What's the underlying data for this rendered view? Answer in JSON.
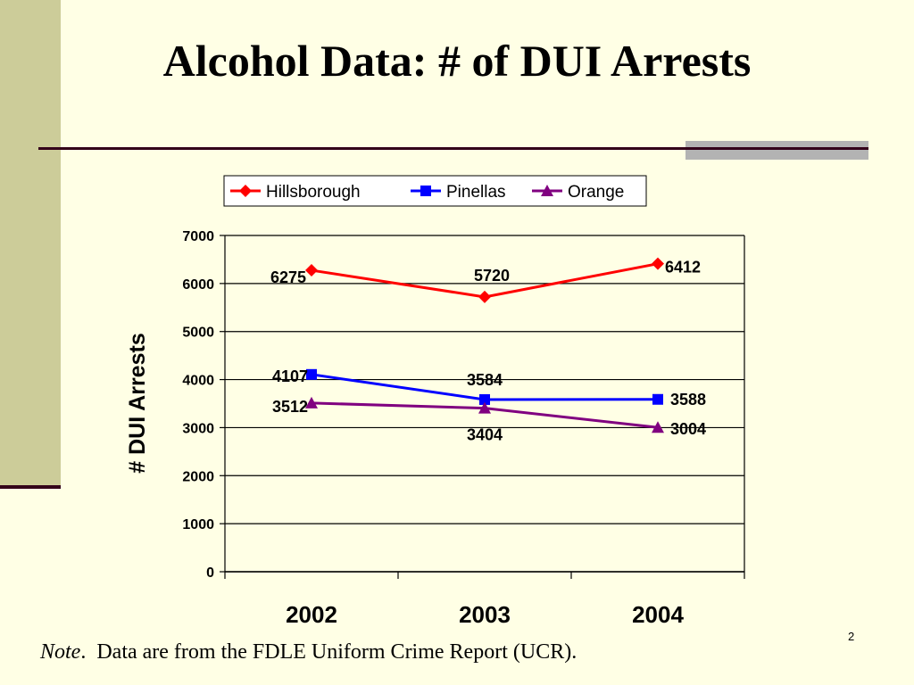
{
  "slide": {
    "title": "Alcohol Data: # of DUI Arrests",
    "note_prefix": "Note",
    "note_text": ".  Data are from the FDLE Uniform Crime Report (UCR).",
    "page_number": "2"
  },
  "colors": {
    "background": "#ffffe5",
    "sidebar": "#cccc99",
    "rule": "#33001a",
    "hillsborough": "#ff0000",
    "pinellas": "#0000ff",
    "orange": "#800080"
  },
  "chart_data": {
    "type": "line",
    "title": "",
    "xlabel": "",
    "ylabel": "# DUI Arrests",
    "categories": [
      "2002",
      "2003",
      "2004"
    ],
    "ylim": [
      0,
      7000
    ],
    "yticks": [
      0,
      1000,
      2000,
      3000,
      4000,
      5000,
      6000,
      7000
    ],
    "grid": true,
    "legend_position": "top",
    "series": [
      {
        "name": "Hillsborough",
        "values": [
          6275,
          5720,
          6412
        ],
        "color": "#ff0000",
        "marker": "diamond"
      },
      {
        "name": "Pinellas",
        "values": [
          4107,
          3584,
          3588
        ],
        "color": "#0000ff",
        "marker": "square"
      },
      {
        "name": "Orange",
        "values": [
          3512,
          3404,
          3004
        ],
        "color": "#800080",
        "marker": "triangle"
      }
    ]
  }
}
